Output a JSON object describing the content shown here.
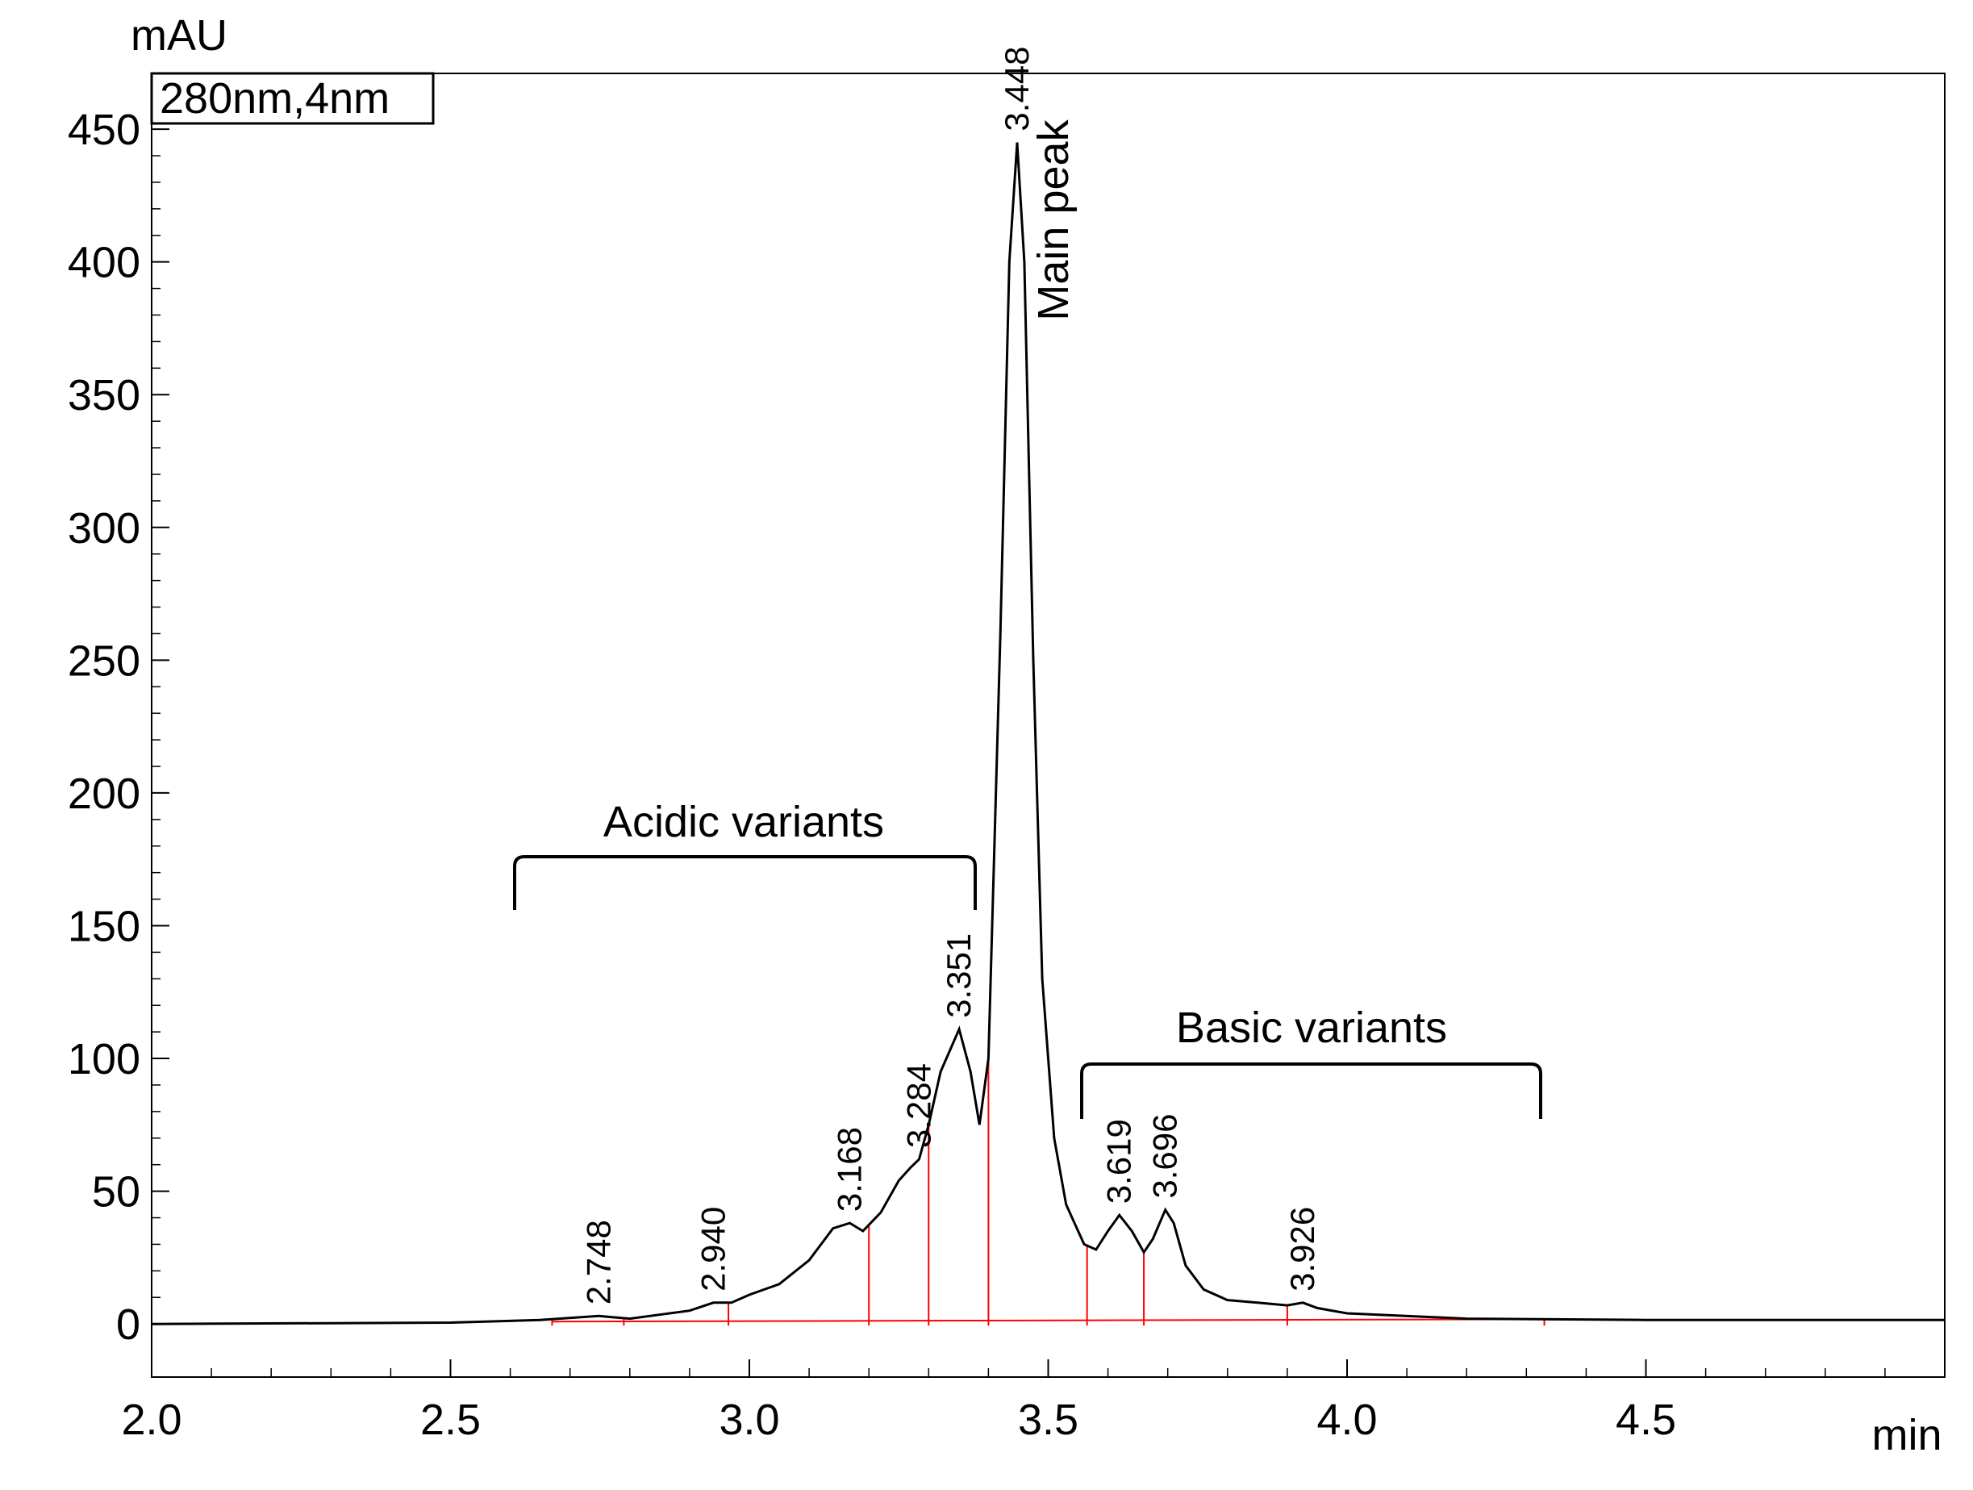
{
  "chart_data": {
    "type": "line",
    "y_label": "mAU",
    "x_label": "min",
    "legend_box": "280nm,4nm",
    "annotations": {
      "main": "Main peak",
      "acidic": "Acidic variants",
      "basic": "Basic variants"
    },
    "color": "#000000",
    "integration_color": "#ff0000",
    "x": [
      2.0,
      2.5,
      2.65,
      2.748,
      2.8,
      2.9,
      2.94,
      2.97,
      3.0,
      3.05,
      3.1,
      3.14,
      3.168,
      3.19,
      3.22,
      3.25,
      3.27,
      3.284,
      3.3,
      3.32,
      3.351,
      3.37,
      3.385,
      3.4,
      3.42,
      3.435,
      3.448,
      3.46,
      3.475,
      3.49,
      3.51,
      3.53,
      3.56,
      3.58,
      3.6,
      3.619,
      3.64,
      3.66,
      3.675,
      3.696,
      3.71,
      3.73,
      3.76,
      3.8,
      3.85,
      3.9,
      3.926,
      3.95,
      4.0,
      4.2,
      4.5,
      5.0
    ],
    "values": [
      0,
      0.5,
      1.5,
      3,
      2,
      5,
      8,
      8,
      11,
      15,
      24,
      36,
      38,
      35,
      42,
      54,
      59,
      62,
      75,
      95,
      111,
      95,
      75,
      100,
      260,
      400,
      445,
      400,
      250,
      130,
      70,
      45,
      30,
      28,
      35,
      41,
      35,
      27,
      32,
      43,
      38,
      22,
      13,
      9,
      8,
      7,
      8,
      6,
      4,
      2,
      1.5,
      1.5
    ],
    "peak_times": [
      2.748,
      2.94,
      3.168,
      3.284,
      3.351,
      3.448,
      3.619,
      3.696,
      3.926
    ],
    "peak_time_labels": [
      "2.748",
      "2.940",
      "3.168",
      "3.284",
      "3.351",
      "3.448",
      "3.619",
      "3.696",
      "3.926"
    ],
    "integration_marks": [
      2.67,
      2.79,
      2.965,
      3.2,
      3.3,
      3.4,
      3.565,
      3.66,
      3.9,
      4.33
    ],
    "xlim": [
      2.0,
      5.0
    ],
    "ylim": [
      -20,
      471
    ],
    "xticks": [
      {
        "value": 2.0,
        "label": "2.0"
      },
      {
        "value": 2.5,
        "label": "2.5"
      },
      {
        "value": 3.0,
        "label": "3.0"
      },
      {
        "value": 3.5,
        "label": "3.5"
      },
      {
        "value": 4.0,
        "label": "4.0"
      },
      {
        "value": 4.5,
        "label": "4.5"
      }
    ],
    "yticks": [
      0,
      50,
      100,
      150,
      200,
      250,
      300,
      350,
      400,
      450
    ]
  }
}
